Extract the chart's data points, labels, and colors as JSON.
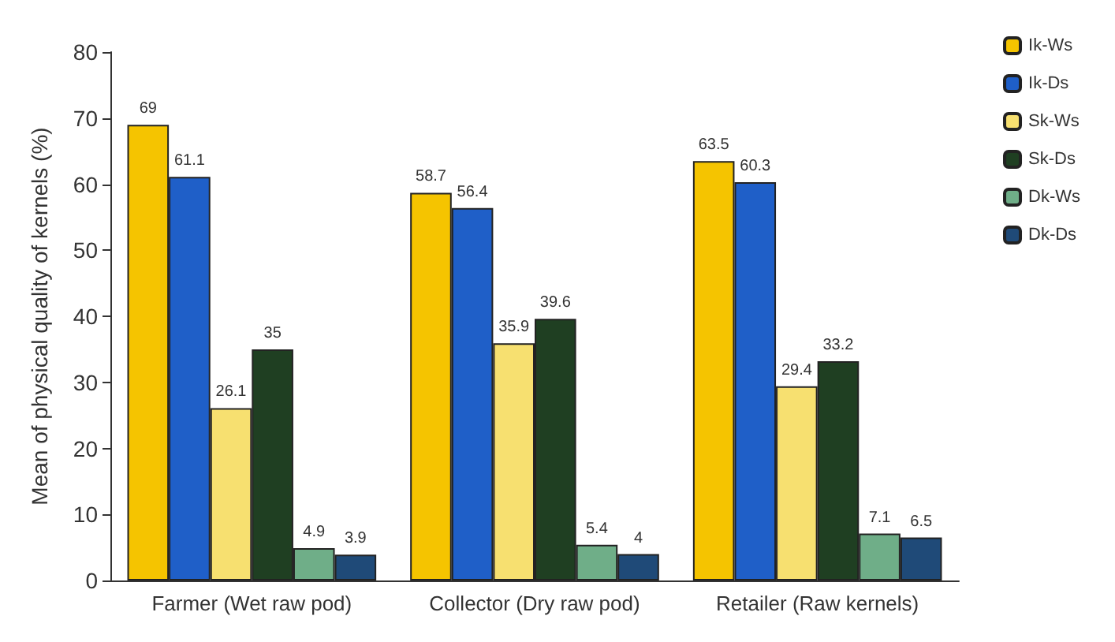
{
  "chart_data": {
    "type": "bar",
    "ylabel": "Mean of physical quality of kernels (%)",
    "categories": [
      "Farmer (Wet raw pod)",
      "Collector (Dry raw pod)",
      "Retailer (Raw kernels)"
    ],
    "series": [
      {
        "name": "Ik-Ws",
        "color": "#f5c400",
        "values": [
          69,
          58.7,
          63.5
        ]
      },
      {
        "name": "Ik-Ds",
        "color": "#1f5fc8",
        "values": [
          61.1,
          56.4,
          60.3
        ]
      },
      {
        "name": "Sk-Ws",
        "color": "#f7e070",
        "values": [
          26.1,
          35.9,
          29.4
        ]
      },
      {
        "name": "Sk-Ds",
        "color": "#1f3f22",
        "values": [
          35,
          39.6,
          33.2
        ]
      },
      {
        "name": "Dk-Ws",
        "color": "#6fae88",
        "values": [
          4.9,
          5.4,
          7.1
        ]
      },
      {
        "name": "Dk-Ds",
        "color": "#1f4a78",
        "values": [
          3.9,
          4,
          6.5
        ]
      }
    ],
    "ylim": [
      0,
      80
    ],
    "yticks": [
      0,
      10,
      20,
      30,
      40,
      50,
      60,
      70,
      80
    ],
    "data_labels": true,
    "legend": "top right",
    "grid": false
  }
}
